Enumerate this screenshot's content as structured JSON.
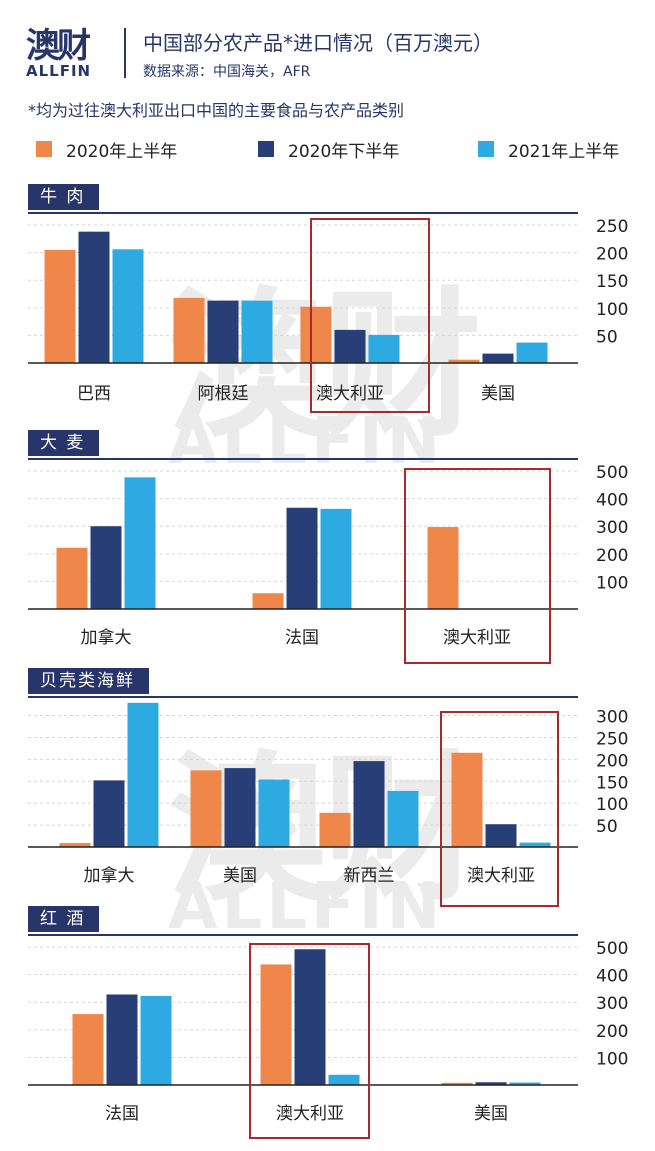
{
  "header": {
    "logo_cn": "澳财",
    "logo_en": "ALLFIN",
    "title": "中国部分农产品*进口情况（百万澳元）",
    "source": "数据来源：中国海关，AFR",
    "note": "*均为过往澳大利亚出口中国的主要食品与农产品类别"
  },
  "watermark": {
    "cn": "澳财",
    "en": "ALLFIN"
  },
  "colors": {
    "h1_2020": "#f0874a",
    "h2_2020": "#273e76",
    "h1_2021": "#2daae1",
    "highlight": "#a8292e",
    "navy": "#27356a"
  },
  "legend": [
    {
      "label": "2020年上半年",
      "color": "#f0874a"
    },
    {
      "label": "2020年下半年",
      "color": "#273e76"
    },
    {
      "label": "2021年上半年",
      "color": "#2daae1"
    }
  ],
  "chart_data": [
    {
      "type": "bar",
      "title": "牛 肉",
      "categories": [
        "巴西",
        "阿根廷",
        "澳大利亚",
        "美国"
      ],
      "series": [
        {
          "name": "2020年上半年",
          "values": [
            205,
            118,
            102,
            6
          ]
        },
        {
          "name": "2020年下半年",
          "values": [
            238,
            113,
            60,
            17
          ]
        },
        {
          "name": "2021年上半年",
          "values": [
            206,
            113,
            51,
            37
          ]
        }
      ],
      "yticks": [
        250,
        200,
        150,
        100,
        50
      ],
      "ylim": [
        0,
        270
      ],
      "highlight": "澳大利亚"
    },
    {
      "type": "bar",
      "title": "大 麦",
      "categories": [
        "加拿大",
        "法国",
        "澳大利亚"
      ],
      "series": [
        {
          "name": "2020年上半年",
          "values": [
            222,
            57,
            297
          ]
        },
        {
          "name": "2020年下半年",
          "values": [
            300,
            367,
            0
          ]
        },
        {
          "name": "2021年上半年",
          "values": [
            477,
            363,
            0
          ]
        }
      ],
      "yticks": [
        500,
        400,
        300,
        200,
        100
      ],
      "ylim": [
        0,
        540
      ],
      "highlight": "澳大利亚"
    },
    {
      "type": "bar",
      "title": "贝壳类海鲜",
      "categories": [
        "加拿大",
        "美国",
        "新西兰",
        "澳大利亚"
      ],
      "series": [
        {
          "name": "2020年上半年",
          "values": [
            9,
            175,
            78,
            215
          ]
        },
        {
          "name": "2020年下半年",
          "values": [
            152,
            180,
            196,
            52
          ]
        },
        {
          "name": "2021年上半年",
          "values": [
            329,
            154,
            128,
            10
          ]
        }
      ],
      "yticks": [
        300,
        250,
        200,
        150,
        100,
        50
      ],
      "ylim": [
        0,
        340
      ],
      "highlight": "澳大利亚"
    },
    {
      "type": "bar",
      "title": "红 酒",
      "categories": [
        "法国",
        "澳大利亚",
        "美国"
      ],
      "series": [
        {
          "name": "2020年上半年",
          "values": [
            257,
            437,
            8
          ]
        },
        {
          "name": "2020年下半年",
          "values": [
            328,
            492,
            10
          ]
        },
        {
          "name": "2021年上半年",
          "values": [
            323,
            37,
            9
          ]
        }
      ],
      "yticks": [
        500,
        400,
        300,
        200,
        100
      ],
      "ylim": [
        0,
        540
      ],
      "highlight": "澳大利亚"
    }
  ]
}
